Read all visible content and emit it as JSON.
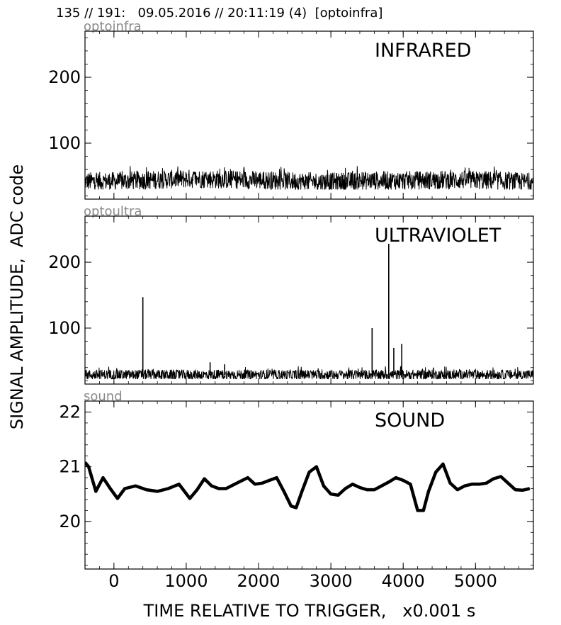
{
  "header": {
    "title": "135 // 191:   09.05.2016 // 20:11:19 (4)  [optoinfra]"
  },
  "axes": {
    "ylabel": "SIGNAL AMPLITUDE,  ADC code",
    "xlabel": "TIME RELATIVE TO TRIGGER,   x0.001 s"
  },
  "chart_data": [
    {
      "type": "line",
      "source": "optoinfra",
      "title": "INFRARED",
      "xlim": [
        -400,
        5800
      ],
      "ylim": [
        15,
        270
      ],
      "yticks": [
        100,
        200
      ],
      "noise": {
        "baseline": 42,
        "low": 30,
        "high": 65
      },
      "x": [
        -400,
        0,
        500,
        1000,
        1500,
        2000,
        2500,
        3000,
        3500,
        4000,
        4500,
        5000,
        5500,
        5800
      ],
      "y_mean": [
        42,
        42,
        44,
        46,
        45,
        44,
        42,
        41,
        43,
        43,
        44,
        44,
        42,
        40
      ],
      "series": [
        {
          "values": [
            42,
            42,
            44,
            46,
            45,
            44,
            42,
            41,
            43,
            43,
            44,
            44,
            42,
            40
          ]
        }
      ]
    },
    {
      "type": "line",
      "source": "optoultra",
      "title": "ULTRAVIOLET",
      "xlim": [
        -400,
        5800
      ],
      "ylim": [
        15,
        270
      ],
      "yticks": [
        100,
        200
      ],
      "noise": {
        "baseline": 29,
        "low": 23,
        "high": 42
      },
      "spikes": [
        {
          "x": 400,
          "y": 147
        },
        {
          "x": 1330,
          "y": 48
        },
        {
          "x": 1530,
          "y": 45
        },
        {
          "x": 3570,
          "y": 100
        },
        {
          "x": 3800,
          "y": 228
        },
        {
          "x": 3870,
          "y": 70
        },
        {
          "x": 3980,
          "y": 76
        },
        {
          "x": 4420,
          "y": 40
        }
      ],
      "series": [
        {
          "values": [
            29,
            29,
            29,
            29,
            29,
            29
          ]
        }
      ]
    },
    {
      "type": "line",
      "source": "sound",
      "title": "SOUND",
      "xlim": [
        -400,
        5800
      ],
      "ylim": [
        19.13,
        22.2
      ],
      "yticks": [
        20,
        21,
        22
      ],
      "x": [
        -400,
        -350,
        -250,
        -150,
        -50,
        50,
        150,
        300,
        450,
        600,
        750,
        900,
        1050,
        1150,
        1250,
        1350,
        1450,
        1550,
        1700,
        1850,
        1950,
        2050,
        2150,
        2250,
        2350,
        2450,
        2520,
        2600,
        2700,
        2800,
        2900,
        3000,
        3100,
        3200,
        3300,
        3400,
        3500,
        3600,
        3700,
        3800,
        3900,
        4000,
        4100,
        4200,
        4280,
        4350,
        4450,
        4550,
        4650,
        4750,
        4850,
        4950,
        5050,
        5150,
        5250,
        5350,
        5450,
        5550,
        5650,
        5750
      ],
      "y": [
        21.08,
        21.0,
        20.55,
        20.8,
        20.6,
        20.42,
        20.6,
        20.65,
        20.58,
        20.55,
        20.6,
        20.68,
        20.42,
        20.58,
        20.78,
        20.65,
        20.6,
        20.6,
        20.7,
        20.8,
        20.68,
        20.7,
        20.75,
        20.8,
        20.55,
        20.28,
        20.25,
        20.55,
        20.9,
        21.0,
        20.65,
        20.5,
        20.48,
        20.6,
        20.68,
        20.62,
        20.58,
        20.58,
        20.65,
        20.72,
        20.8,
        20.75,
        20.68,
        20.2,
        20.2,
        20.55,
        20.9,
        21.05,
        20.7,
        20.58,
        20.65,
        20.68,
        20.68,
        20.7,
        20.78,
        20.82,
        20.7,
        20.58,
        20.57,
        20.6
      ],
      "series": [
        {
          "values": [
            21.08,
            21.0,
            20.55,
            20.8,
            20.6,
            20.42,
            20.6,
            20.65,
            20.58,
            20.55,
            20.6,
            20.68,
            20.42,
            20.58,
            20.78,
            20.65,
            20.6,
            20.6,
            20.7,
            20.8,
            20.68,
            20.7,
            20.75,
            20.8,
            20.55,
            20.28,
            20.25,
            20.55,
            20.9,
            21.0,
            20.65,
            20.5,
            20.48,
            20.6,
            20.68,
            20.62,
            20.58,
            20.58,
            20.65,
            20.72,
            20.8,
            20.75,
            20.68,
            20.2,
            20.2,
            20.55,
            20.9,
            21.05,
            20.7,
            20.58,
            20.65,
            20.68,
            20.68,
            20.7,
            20.78,
            20.82,
            20.7,
            20.58,
            20.57,
            20.6
          ]
        }
      ]
    }
  ],
  "xaxis": {
    "ticks": [
      0,
      1000,
      2000,
      3000,
      4000,
      5000
    ]
  }
}
